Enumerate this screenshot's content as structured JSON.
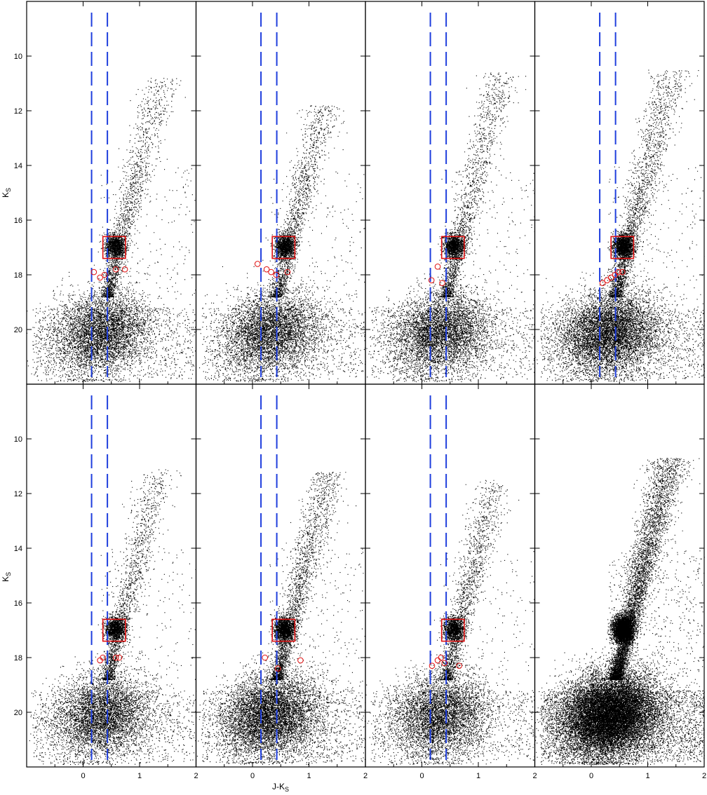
{
  "chart_data": {
    "type": "scatter",
    "layout": "4x2 panel grid, shared axes",
    "xlabel": "J-K",
    "xlabel_sub": "S",
    "ylabel": "K",
    "ylabel_sub": "S",
    "xlim": [
      -1,
      2
    ],
    "ylim": [
      22,
      8
    ],
    "y_inverted": true,
    "x_ticks": [
      0,
      1,
      2
    ],
    "y_ticks": [
      10,
      12,
      14,
      16,
      18,
      20
    ],
    "grid": false,
    "colors": {
      "points": "#000000",
      "dashed_lines": "#1f3fdd",
      "box": "#e01010",
      "circles": "#e01010"
    },
    "dashed_lines_x": [
      0.15,
      0.43
    ],
    "box": {
      "x": [
        0.35,
        0.75
      ],
      "y": [
        16.6,
        17.4
      ]
    },
    "panels": [
      {
        "row": 0,
        "col": 0,
        "sparse": true,
        "tip": 10.8,
        "circles": [
          [
            0.19,
            17.9
          ],
          [
            0.38,
            18.0
          ],
          [
            0.58,
            17.8
          ],
          [
            0.74,
            17.8
          ],
          [
            0.3,
            18.1
          ]
        ]
      },
      {
        "row": 0,
        "col": 1,
        "sparse": true,
        "tip": 11.8,
        "circles": [
          [
            0.09,
            17.6
          ],
          [
            0.25,
            17.8
          ],
          [
            0.33,
            17.9
          ],
          [
            0.42,
            18.0
          ],
          [
            0.62,
            17.9
          ]
        ]
      },
      {
        "row": 0,
        "col": 2,
        "sparse": true,
        "tip": 10.6,
        "circles": [
          [
            0.28,
            17.7
          ],
          [
            0.17,
            18.2
          ],
          [
            0.36,
            18.3
          ]
        ]
      },
      {
        "row": 0,
        "col": 3,
        "sparse": false,
        "tip": 10.5,
        "circles": [
          [
            0.2,
            18.3
          ],
          [
            0.28,
            18.2
          ],
          [
            0.35,
            18.1
          ],
          [
            0.42,
            18.0
          ],
          [
            0.48,
            17.9
          ],
          [
            0.55,
            17.9
          ]
        ]
      },
      {
        "row": 1,
        "col": 0,
        "sparse": true,
        "tip": 11.1,
        "circles": [
          [
            0.3,
            18.1
          ],
          [
            0.35,
            18.0
          ],
          [
            0.58,
            18.0
          ],
          [
            0.64,
            18.0
          ]
        ]
      },
      {
        "row": 1,
        "col": 1,
        "sparse": false,
        "tip": 11.2,
        "circles": [
          [
            0.22,
            18.0
          ],
          [
            0.45,
            18.4
          ],
          [
            0.85,
            18.1
          ]
        ]
      },
      {
        "row": 1,
        "col": 2,
        "sparse": true,
        "tip": 11.5,
        "circles": [
          [
            0.18,
            18.3
          ],
          [
            0.28,
            18.1
          ],
          [
            0.34,
            18.0
          ],
          [
            0.4,
            18.2
          ],
          [
            0.66,
            18.3
          ]
        ]
      },
      {
        "row": 1,
        "col": 3,
        "sparse": false,
        "dense": true,
        "tip": 10.7,
        "circles": []
      }
    ]
  }
}
